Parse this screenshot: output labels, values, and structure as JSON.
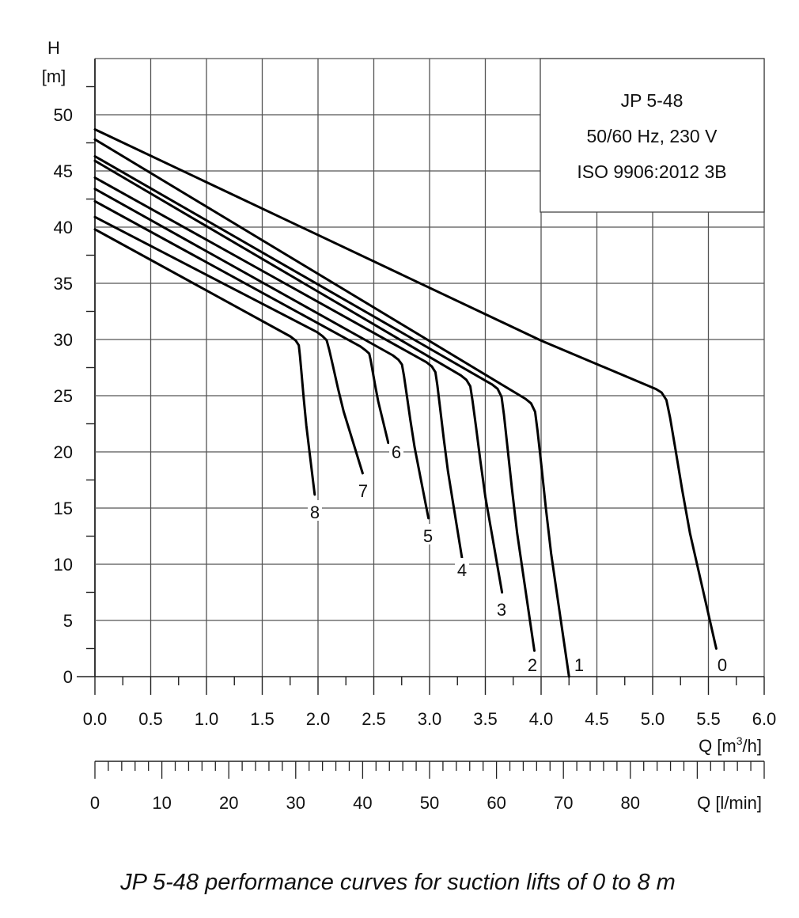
{
  "chart_data": {
    "type": "line",
    "title": "JP 5-48 performance curves for suction lifts of 0 to 8 m",
    "xlabel": "Q [m³/h]",
    "xlabel_parts": {
      "pre": "Q [m",
      "sup": "3",
      "post": "/h]"
    },
    "ylabel_symbol": "H",
    "ylabel_unit": "[m]",
    "secondary_xlabel": "Q [l/min]",
    "xlim": [
      0,
      6
    ],
    "ylim": [
      0,
      55
    ],
    "secondary_xlim": [
      0,
      100
    ],
    "x_ticks": [
      "0.0",
      "0.5",
      "1.0",
      "1.5",
      "2.0",
      "2.5",
      "3.0",
      "3.5",
      "4.0",
      "4.5",
      "5.0",
      "5.5",
      "6.0"
    ],
    "y_ticks": [
      "0",
      "5",
      "10",
      "15",
      "20",
      "25",
      "30",
      "35",
      "40",
      "45",
      "50"
    ],
    "secondary_x_ticks": [
      "0",
      "10",
      "20",
      "30",
      "40",
      "50",
      "60",
      "70",
      "80"
    ],
    "grid": true,
    "legend_box": {
      "position": "top-right",
      "lines": [
        "JP 5-48",
        "50/60 Hz, 230 V",
        "ISO 9906:2012 3B"
      ]
    },
    "series": [
      {
        "name": "0",
        "points": [
          [
            0,
            48.7
          ],
          [
            4.0,
            29.9
          ],
          [
            5.1,
            25.3
          ],
          [
            5.57,
            2.5
          ]
        ]
      },
      {
        "name": "1",
        "points": [
          [
            0,
            47.8
          ],
          [
            3.93,
            24.3
          ],
          [
            4.25,
            0
          ]
        ]
      },
      {
        "name": "2",
        "points": [
          [
            0,
            46.3
          ],
          [
            3.63,
            25.6
          ],
          [
            3.94,
            2.3
          ]
        ]
      },
      {
        "name": "3",
        "points": [
          [
            0,
            45.9
          ],
          [
            3.35,
            26.4
          ],
          [
            3.65,
            7.5
          ]
        ]
      },
      {
        "name": "4",
        "points": [
          [
            0,
            44.4
          ],
          [
            3.04,
            27.6
          ],
          [
            3.29,
            10.6
          ]
        ]
      },
      {
        "name": "5",
        "points": [
          [
            0,
            43.4
          ],
          [
            2.74,
            28.2
          ],
          [
            2.99,
            14.1
          ]
        ]
      },
      {
        "name": "6",
        "points": [
          [
            0,
            42.3
          ],
          [
            2.45,
            29.0
          ],
          [
            2.63,
            20.8
          ]
        ]
      },
      {
        "name": "7",
        "points": [
          [
            0,
            40.9
          ],
          [
            2.06,
            30.3
          ],
          [
            2.4,
            18.1
          ]
        ]
      },
      {
        "name": "8",
        "points": [
          [
            0,
            39.8
          ],
          [
            1.82,
            29.9
          ],
          [
            1.97,
            16.2
          ]
        ]
      }
    ]
  }
}
